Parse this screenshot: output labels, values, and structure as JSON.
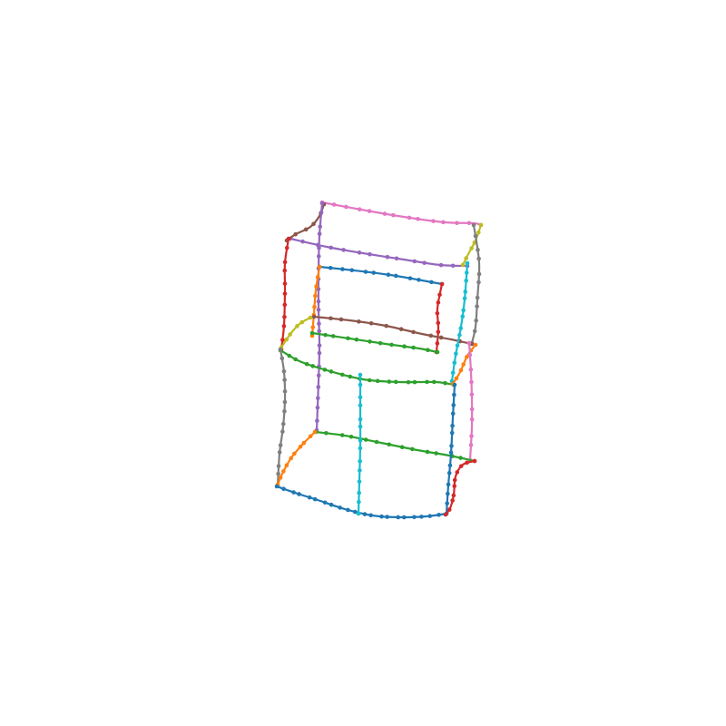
{
  "figure": {
    "kind": "3d-wireframe-curves",
    "background": "#ffffff"
  },
  "palette": {
    "blue": "#1f77b4",
    "orange": "#ff7f0e",
    "green": "#2ca02c",
    "red": "#d62728",
    "purple": "#9467bd",
    "brown": "#8c564b",
    "pink": "#e377c2",
    "gray": "#7f7f7f",
    "olive": "#bcbd22",
    "cyan": "#17becf"
  },
  "curves": [
    {
      "name": "pink-top-back",
      "color": "pink"
    },
    {
      "name": "purple-top-front",
      "color": "purple"
    },
    {
      "name": "brown-top-left-corner",
      "color": "brown"
    },
    {
      "name": "red-left-upper",
      "color": "red"
    },
    {
      "name": "purple-left-vertical",
      "color": "purple"
    },
    {
      "name": "olive-top-right-corner",
      "color": "olive"
    },
    {
      "name": "gray-right-upper",
      "color": "gray"
    },
    {
      "name": "blue-inner-top",
      "color": "blue"
    },
    {
      "name": "orange-inner-left",
      "color": "orange"
    },
    {
      "name": "red-inner-right",
      "color": "red"
    },
    {
      "name": "brown-middle-back",
      "color": "brown"
    },
    {
      "name": "green-middle-inner",
      "color": "green"
    },
    {
      "name": "olive-left-corner",
      "color": "olive"
    },
    {
      "name": "green-middle-front",
      "color": "green"
    },
    {
      "name": "cyan-right-vertical",
      "color": "cyan"
    },
    {
      "name": "orange-right-corner",
      "color": "orange"
    },
    {
      "name": "pink-right-lower",
      "color": "pink"
    },
    {
      "name": "gray-left-lower",
      "color": "gray"
    },
    {
      "name": "green-bottom-back",
      "color": "green"
    },
    {
      "name": "orange-bottom-left-corner",
      "color": "orange"
    },
    {
      "name": "blue-bottom-front",
      "color": "blue"
    },
    {
      "name": "cyan-center-vertical",
      "color": "cyan"
    },
    {
      "name": "blue-right-lower",
      "color": "blue"
    },
    {
      "name": "red-bottom-right-corner",
      "color": "red"
    }
  ]
}
